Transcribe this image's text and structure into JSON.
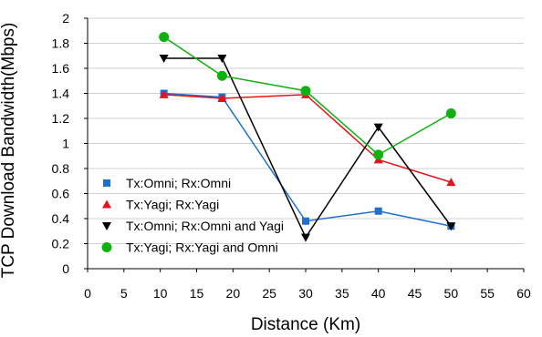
{
  "chart_data": {
    "type": "line",
    "xlabel": "Distance (Km)",
    "ylabel": "TCP Download Bandwidth(Mbps)",
    "xlim": [
      0,
      60
    ],
    "ylim": [
      0,
      2
    ],
    "xticks": [
      0,
      5,
      10,
      15,
      20,
      25,
      30,
      35,
      40,
      45,
      50,
      55,
      60
    ],
    "yticks": [
      0,
      0.2,
      0.4,
      0.6,
      0.8,
      1,
      1.2,
      1.4,
      1.6,
      1.8,
      2
    ],
    "xtick_labels": [
      "0",
      "5",
      "10",
      "15",
      "20",
      "25",
      "30",
      "35",
      "40",
      "45",
      "50",
      "55",
      "60"
    ],
    "ytick_labels": [
      "0",
      "0.2",
      "0.4",
      "0.6",
      "0.8",
      "1",
      "1.2",
      "1.4",
      "1.6",
      "1.8",
      "2"
    ],
    "grid": {
      "horizontal": true,
      "vertical": false
    },
    "legend": {
      "placement": "lower-left"
    },
    "series": [
      {
        "name": "Tx:Omni; Rx:Omni",
        "color": "#1f6fd0",
        "marker": "square",
        "x": [
          10.5,
          18.5,
          30,
          40,
          50
        ],
        "y": [
          1.4,
          1.37,
          0.38,
          0.46,
          0.34
        ]
      },
      {
        "name": "Tx:Yagi; Rx:Yagi",
        "color": "#e8101a",
        "marker": "triangle-up",
        "x": [
          10.5,
          18.5,
          30,
          40,
          50
        ],
        "y": [
          1.39,
          1.36,
          1.39,
          0.87,
          0.69
        ]
      },
      {
        "name": "Tx:Omni; Rx:Omni and Yagi",
        "color": "#000000",
        "marker": "triangle-down",
        "x": [
          10.5,
          18.5,
          30,
          40,
          50
        ],
        "y": [
          1.68,
          1.68,
          0.25,
          1.13,
          0.34
        ]
      },
      {
        "name": "Tx:Yagi; Rx:Yagi and Omni",
        "color": "#10b010",
        "marker": "circle",
        "x": [
          10.5,
          18.5,
          30,
          40,
          50
        ],
        "y": [
          1.85,
          1.54,
          1.42,
          0.91,
          1.24
        ]
      }
    ]
  }
}
